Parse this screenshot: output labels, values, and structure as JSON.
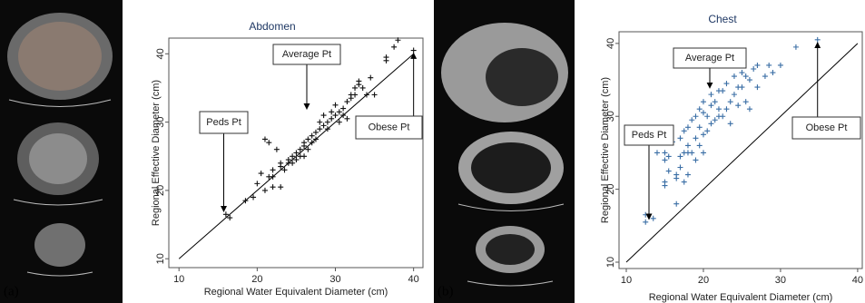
{
  "chart_data": [
    {
      "type": "scatter",
      "title": "Abdomen",
      "panel_label": "(a)",
      "x_label": "Regional Water Equivalent Diameter (cm)",
      "y_label": "Regional Effective Diameter (cm)",
      "color": "#111111",
      "xlim": [
        8.7,
        41.2
      ],
      "ylim": [
        8.7,
        42.3
      ],
      "xticks": [
        10,
        20,
        30,
        40
      ],
      "yticks": [
        10,
        20,
        30,
        40
      ],
      "reference_line": {
        "x": [
          10,
          40
        ],
        "y": [
          10,
          40
        ]
      },
      "annotations": [
        {
          "text": "Peds Pt",
          "x": 16,
          "y": 16.5
        },
        {
          "text": "Average Pt",
          "x": 29.5,
          "y": 31.5
        },
        {
          "text": "Obese Pt",
          "x": 40,
          "y": 40.5
        }
      ],
      "x": [
        16,
        16.5,
        18.5,
        19.5,
        20,
        20.5,
        21,
        21.5,
        21.5,
        22,
        22,
        22.5,
        23,
        23,
        23.5,
        24,
        24,
        24.5,
        24.5,
        25,
        25,
        25.5,
        25.5,
        26,
        26,
        26.5,
        26.5,
        27,
        27,
        27.5,
        27.5,
        28,
        28,
        28.5,
        28.5,
        29,
        29,
        29.5,
        29.5,
        30,
        30,
        30.5,
        30.5,
        31,
        31,
        31.5,
        31.5,
        32,
        32,
        32.5,
        32.5,
        33,
        33,
        33.5,
        34,
        35,
        36.5,
        36.5,
        37.5,
        38,
        40,
        34.5,
        21,
        23,
        22,
        26
      ],
      "values": [
        16.5,
        16,
        18.5,
        19,
        21,
        22.5,
        27.5,
        27,
        22,
        23,
        22,
        26,
        24,
        23.5,
        23,
        24.5,
        24,
        25,
        24,
        24.5,
        25.5,
        26,
        25,
        26.5,
        27,
        26,
        27.5,
        27,
        28,
        28.5,
        27.5,
        29,
        30,
        29.5,
        31,
        30,
        29,
        31.5,
        30.5,
        31,
        32.5,
        31.5,
        30,
        31,
        32,
        33,
        30.5,
        34,
        33.5,
        35,
        34,
        36,
        35.5,
        35,
        34,
        34,
        39.5,
        39,
        41,
        42,
        40.5,
        36.5,
        20,
        20.5,
        20.5,
        25
      ]
    },
    {
      "type": "scatter",
      "title": "Chest",
      "panel_label": "(b)",
      "x_label": "Regional Water Equivalent Diameter (cm)",
      "y_label": "Regional Effective Diameter (cm)",
      "color": "#3a6ea5",
      "xlim": [
        9.06,
        40.6
      ],
      "ylim": [
        9.13,
        41.6
      ],
      "xticks": [
        10,
        20,
        30,
        40
      ],
      "yticks": [
        10,
        20,
        30,
        40
      ],
      "reference_line": {
        "x": [
          10,
          40
        ],
        "y": [
          10,
          40
        ]
      },
      "annotations": [
        {
          "text": "Peds Pt",
          "x": 12.5,
          "y": 15.5
        },
        {
          "text": "Average Pt",
          "x": 22,
          "y": 33.5
        },
        {
          "text": "Obese Pt",
          "x": 34.8,
          "y": 40.5
        }
      ],
      "x": [
        12.5,
        12.5,
        13.5,
        15,
        15,
        15,
        15.5,
        15.5,
        16,
        16.5,
        16.5,
        17,
        17,
        17,
        17.5,
        17.5,
        18,
        18,
        18,
        18.5,
        18.5,
        19,
        19,
        19,
        19.5,
        19.5,
        19.5,
        20,
        20,
        20,
        20,
        20.5,
        20.5,
        21,
        21,
        21,
        21.5,
        21.5,
        22,
        22,
        22,
        22.5,
        22.5,
        23,
        23,
        23.5,
        23.5,
        24,
        24,
        24.5,
        24.5,
        25,
        25,
        25.5,
        25.5,
        26,
        26,
        26.5,
        27,
        27,
        28,
        28.5,
        29,
        30,
        32,
        34.8,
        14,
        15,
        16.5,
        17.5,
        18
      ],
      "values": [
        15.5,
        16.5,
        16,
        21,
        24,
        25,
        22.5,
        24.5,
        26.5,
        18,
        22,
        23,
        24.5,
        27,
        25,
        28,
        22,
        26,
        28.5,
        25,
        29.5,
        24,
        27,
        30,
        26,
        28.5,
        31,
        25,
        27.5,
        30.5,
        32,
        28,
        30,
        29,
        31.5,
        33,
        29.5,
        32,
        30,
        31,
        33.5,
        30,
        33.5,
        31,
        34.5,
        32,
        29,
        33,
        35.5,
        31.5,
        34,
        34,
        36,
        32,
        35.5,
        35,
        31,
        36.5,
        34,
        37,
        35.5,
        37,
        36,
        37,
        39.5,
        40.5,
        25,
        20.5,
        21.5,
        21,
        25
      ]
    }
  ]
}
